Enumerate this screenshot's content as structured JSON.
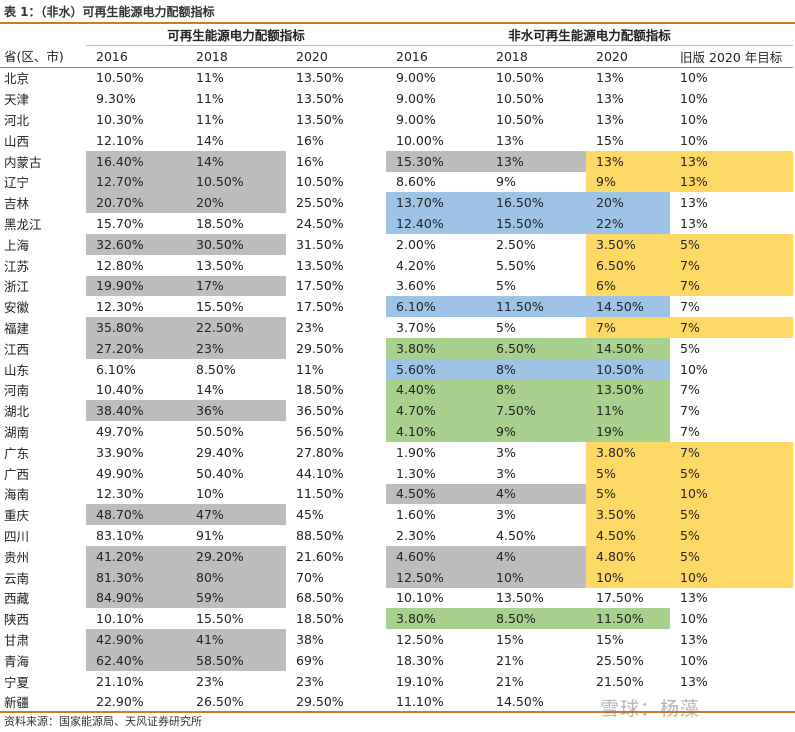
{
  "title": "表 1：（非水）可再生能源电力配额指标",
  "group_headers": {
    "renewable": "可再生能源电力配额指标",
    "non_hydro": "非水可再生能源电力配额指标"
  },
  "columns": [
    "省(区、市)",
    "2016",
    "2018",
    "2020",
    "2016",
    "2018",
    "2020",
    "旧版 2020 年目标"
  ],
  "rows": [
    {
      "cells": [
        "北京",
        "10.50%",
        "11%",
        "13.50%",
        "9.00%",
        "10.50%",
        "13%",
        "10%"
      ],
      "hl": [
        "",
        "",
        "",
        "",
        "",
        "",
        "",
        ""
      ]
    },
    {
      "cells": [
        "天津",
        "9.30%",
        "11%",
        "13.50%",
        "9.00%",
        "10.50%",
        "13%",
        "10%"
      ],
      "hl": [
        "",
        "",
        "",
        "",
        "",
        "",
        "",
        ""
      ]
    },
    {
      "cells": [
        "河北",
        "10.30%",
        "11%",
        "13.50%",
        "9.00%",
        "10.50%",
        "13%",
        "10%"
      ],
      "hl": [
        "",
        "",
        "",
        "",
        "",
        "",
        "",
        ""
      ]
    },
    {
      "cells": [
        "山西",
        "12.10%",
        "14%",
        "16%",
        "10.00%",
        "13%",
        "15%",
        "10%"
      ],
      "hl": [
        "",
        "",
        "",
        "",
        "",
        "",
        "",
        ""
      ]
    },
    {
      "cells": [
        "内蒙古",
        "16.40%",
        "14%",
        "16%",
        "15.30%",
        "13%",
        "13%",
        "13%"
      ],
      "hl": [
        "",
        "g",
        "g",
        "",
        "g",
        "g",
        "y",
        "y"
      ]
    },
    {
      "cells": [
        "辽宁",
        "12.70%",
        "10.50%",
        "10.50%",
        "8.60%",
        "9%",
        "9%",
        "13%"
      ],
      "hl": [
        "",
        "g",
        "g",
        "",
        "",
        "",
        "y",
        "y"
      ]
    },
    {
      "cells": [
        "吉林",
        "20.70%",
        "20%",
        "25.50%",
        "13.70%",
        "16.50%",
        "20%",
        "13%"
      ],
      "hl": [
        "",
        "g",
        "g",
        "",
        "b",
        "b",
        "b",
        ""
      ]
    },
    {
      "cells": [
        "黑龙江",
        "15.70%",
        "18.50%",
        "24.50%",
        "12.40%",
        "15.50%",
        "22%",
        "13%"
      ],
      "hl": [
        "",
        "",
        "",
        "",
        "b",
        "b",
        "b",
        ""
      ]
    },
    {
      "cells": [
        "上海",
        "32.60%",
        "30.50%",
        "31.50%",
        "2.00%",
        "2.50%",
        "3.50%",
        "5%"
      ],
      "hl": [
        "",
        "g",
        "g",
        "",
        "",
        "",
        "y",
        "y"
      ]
    },
    {
      "cells": [
        "江苏",
        "12.80%",
        "13.50%",
        "13.50%",
        "4.20%",
        "5.50%",
        "6.50%",
        "7%"
      ],
      "hl": [
        "",
        "",
        "",
        "",
        "",
        "",
        "y",
        "y"
      ]
    },
    {
      "cells": [
        "浙江",
        "19.90%",
        "17%",
        "17.50%",
        "3.60%",
        "5%",
        "6%",
        "7%"
      ],
      "hl": [
        "",
        "g",
        "g",
        "",
        "",
        "",
        "y",
        "y"
      ]
    },
    {
      "cells": [
        "安徽",
        "12.30%",
        "15.50%",
        "17.50%",
        "6.10%",
        "11.50%",
        "14.50%",
        "7%"
      ],
      "hl": [
        "",
        "",
        "",
        "",
        "b",
        "b",
        "b",
        ""
      ]
    },
    {
      "cells": [
        "福建",
        "35.80%",
        "22.50%",
        "23%",
        "3.70%",
        "5%",
        "7%",
        "7%"
      ],
      "hl": [
        "",
        "g",
        "g",
        "",
        "",
        "",
        "y",
        "y"
      ]
    },
    {
      "cells": [
        "江西",
        "27.20%",
        "23%",
        "29.50%",
        "3.80%",
        "6.50%",
        "14.50%",
        "5%"
      ],
      "hl": [
        "",
        "g",
        "g",
        "",
        "gr",
        "gr",
        "gr",
        ""
      ]
    },
    {
      "cells": [
        "山东",
        "6.10%",
        "8.50%",
        "11%",
        "5.60%",
        "8%",
        "10.50%",
        "10%"
      ],
      "hl": [
        "",
        "",
        "",
        "",
        "b",
        "b",
        "b",
        ""
      ]
    },
    {
      "cells": [
        "河南",
        "10.40%",
        "14%",
        "18.50%",
        "4.40%",
        "8%",
        "13.50%",
        "7%"
      ],
      "hl": [
        "",
        "",
        "",
        "",
        "gr",
        "gr",
        "gr",
        ""
      ]
    },
    {
      "cells": [
        "湖北",
        "38.40%",
        "36%",
        "36.50%",
        "4.70%",
        "7.50%",
        "11%",
        "7%"
      ],
      "hl": [
        "",
        "g",
        "g",
        "",
        "gr",
        "gr",
        "gr",
        ""
      ]
    },
    {
      "cells": [
        "湖南",
        "49.70%",
        "50.50%",
        "56.50%",
        "4.10%",
        "9%",
        "19%",
        "7%"
      ],
      "hl": [
        "",
        "",
        "",
        "",
        "gr",
        "gr",
        "gr",
        ""
      ]
    },
    {
      "cells": [
        "广东",
        "33.90%",
        "29.40%",
        "27.80%",
        "1.90%",
        "3%",
        "3.80%",
        "7%"
      ],
      "hl": [
        "",
        "",
        "",
        "",
        "",
        "",
        "y",
        "y"
      ]
    },
    {
      "cells": [
        "广西",
        "49.90%",
        "50.40%",
        "44.10%",
        "1.30%",
        "3%",
        "5%",
        "5%"
      ],
      "hl": [
        "",
        "",
        "",
        "",
        "",
        "",
        "y",
        "y"
      ]
    },
    {
      "cells": [
        "海南",
        "12.30%",
        "10%",
        "11.50%",
        "4.50%",
        "4%",
        "5%",
        "10%"
      ],
      "hl": [
        "",
        "",
        "",
        "",
        "g",
        "g",
        "y",
        "y"
      ]
    },
    {
      "cells": [
        "重庆",
        "48.70%",
        "47%",
        "45%",
        "1.60%",
        "3%",
        "3.50%",
        "5%"
      ],
      "hl": [
        "",
        "g",
        "g",
        "",
        "",
        "",
        "y",
        "y"
      ]
    },
    {
      "cells": [
        "四川",
        "83.10%",
        "91%",
        "88.50%",
        "2.30%",
        "4.50%",
        "4.50%",
        "5%"
      ],
      "hl": [
        "",
        "",
        "",
        "",
        "",
        "",
        "y",
        "y"
      ]
    },
    {
      "cells": [
        "贵州",
        "41.20%",
        "29.20%",
        "21.60%",
        "4.60%",
        "4%",
        "4.80%",
        "5%"
      ],
      "hl": [
        "",
        "g",
        "g",
        "",
        "g",
        "g",
        "y",
        "y"
      ]
    },
    {
      "cells": [
        "云南",
        "81.30%",
        "80%",
        "70%",
        "12.50%",
        "10%",
        "10%",
        "10%"
      ],
      "hl": [
        "",
        "g",
        "g",
        "",
        "g",
        "g",
        "y",
        "y"
      ]
    },
    {
      "cells": [
        "西藏",
        "84.90%",
        "59%",
        "68.50%",
        "10.10%",
        "13.50%",
        "17.50%",
        "13%"
      ],
      "hl": [
        "",
        "g",
        "g",
        "",
        "",
        "",
        "",
        ""
      ]
    },
    {
      "cells": [
        "陕西",
        "10.10%",
        "15.50%",
        "18.50%",
        "3.80%",
        "8.50%",
        "11.50%",
        "10%"
      ],
      "hl": [
        "",
        "",
        "",
        "",
        "gr",
        "gr",
        "gr",
        ""
      ]
    },
    {
      "cells": [
        "甘肃",
        "42.90%",
        "41%",
        "38%",
        "12.50%",
        "15%",
        "15%",
        "13%"
      ],
      "hl": [
        "",
        "g",
        "g",
        "",
        "",
        "",
        "",
        ""
      ]
    },
    {
      "cells": [
        "青海",
        "62.40%",
        "58.50%",
        "69%",
        "18.30%",
        "21%",
        "25.50%",
        "10%"
      ],
      "hl": [
        "",
        "g",
        "g",
        "",
        "",
        "",
        "",
        ""
      ]
    },
    {
      "cells": [
        "宁夏",
        "21.10%",
        "23%",
        "23%",
        "19.10%",
        "21%",
        "21.50%",
        "13%"
      ],
      "hl": [
        "",
        "",
        "",
        "",
        "",
        "",
        "",
        ""
      ]
    },
    {
      "cells": [
        "新疆",
        "22.90%",
        "26.50%",
        "29.50%",
        "11.10%",
        "14.50%",
        "",
        ""
      ],
      "hl": [
        "",
        "",
        "",
        "",
        "",
        "",
        "",
        ""
      ]
    }
  ],
  "source": "资料来源：国家能源局、天风证券研究所",
  "watermark": "雪球：杨藻",
  "colors": {
    "grey": "#bdbdbd",
    "blue": "#9dc3e6",
    "green": "#a9d18e",
    "yellow": "#ffd966",
    "rule": "#d07a28"
  }
}
